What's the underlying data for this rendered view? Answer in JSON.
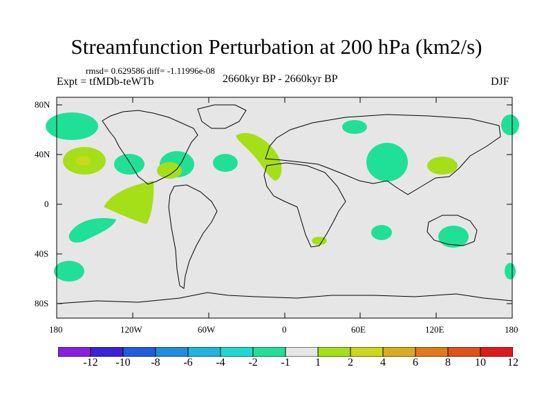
{
  "title": "Streamfunction Perturbation at 200 hPa (km2/s)",
  "stats": "rmsd= 0.629586 diff= -1.11996e-08",
  "experiment": "Expt = tfMDb-teWTb",
  "period": "2660kyr BP - 2660kyr BP",
  "season": "DJF",
  "lat_labels": [
    "80N",
    "40N",
    "0",
    "40S",
    "80S"
  ],
  "lon_labels": [
    "180",
    "120W",
    "60W",
    "0",
    "60E",
    "120E",
    "180"
  ],
  "colorbar": {
    "labels": [
      "-12",
      "-10",
      "-8",
      "-6",
      "-4",
      "-2",
      "-1",
      "1",
      "2",
      "4",
      "6",
      "8",
      "10",
      "12"
    ],
    "colors": [
      "#8a1fe0",
      "#3b22d8",
      "#1f5ce0",
      "#1d8ee0",
      "#20b4e0",
      "#1fd8d0",
      "#20e098",
      "#e6e6e6",
      "#a5df18",
      "#cad81e",
      "#dcaa1e",
      "#e07a1a",
      "#e0501a",
      "#e01a1a"
    ]
  },
  "map": {
    "land_color": "#e6e6e6",
    "coast_color": "#000000",
    "positive_color": "#a5df18",
    "positive_inner_color": "#cad81e",
    "negative_color": "#20e098"
  }
}
